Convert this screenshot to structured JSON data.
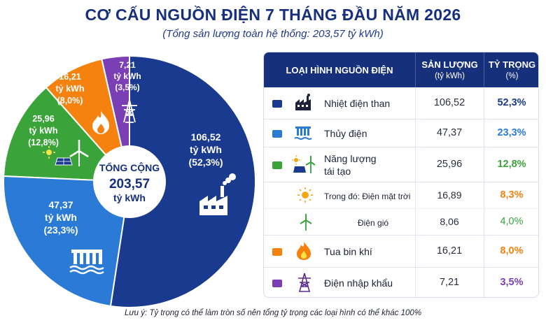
{
  "title": "CƠ CẤU NGUỒN ĐIỆN 7 THÁNG ĐẦU NĂM 2026",
  "subtitle": "(Tổng sản lượng toàn hệ thống: 203,57 tỷ kWh)",
  "center": {
    "line1": "TỔNG CỘNG",
    "line2": "203,57",
    "line3": "tỷ kWh"
  },
  "colors": {
    "coal": "#1a3a8f",
    "hydro": "#2a7ad6",
    "renewable": "#3aa33a",
    "gas": "#f5820f",
    "import": "#7b3fb5",
    "header": "#17307c"
  },
  "chart_data": {
    "type": "pie",
    "unit": "tỷ kWh",
    "slices": [
      {
        "key": "coal",
        "name": "Nhiệt điện than",
        "value": 106.52,
        "value_label": "106,52",
        "unit_label": "tỷ kWh",
        "pct_label": "(52,3%)",
        "icon": "factory-icon",
        "color": "#1a3a8f"
      },
      {
        "key": "hydro",
        "name": "Thủy điện",
        "value": 47.37,
        "value_label": "47,37",
        "unit_label": "tỷ kWh",
        "pct_label": "(23,3%)",
        "icon": "hydro-dam-icon",
        "color": "#2a7ad6"
      },
      {
        "key": "renewable",
        "name": "Năng lượng tái tạo",
        "value": 25.96,
        "value_label": "25,96",
        "unit_label": "tỷ kWh",
        "pct_label": "(12,8%)",
        "icon": "solar-wind-icon",
        "color": "#3aa33a"
      },
      {
        "key": "gas",
        "name": "Tua bin khí",
        "value": 16.21,
        "value_label": "16,21",
        "unit_label": "tỷ kWh",
        "pct_label": "(8,0%)",
        "icon": "flame-icon",
        "color": "#f5820f"
      },
      {
        "key": "import",
        "name": "Điện nhập khẩu",
        "value": 7.21,
        "value_label": "7,21",
        "unit_label": "tỷ kWh",
        "pct_label": "(3,5%)",
        "icon": "power-tower-icon",
        "color": "#7b3fb5"
      }
    ]
  },
  "table": {
    "headers": {
      "type": "LOẠI HÌNH NGUỒN ĐIỆN",
      "value": "SẢN LƯỢNG",
      "value_unit": "(tỷ kWh)",
      "share": "TỶ TRỌNG",
      "share_unit": "(%)"
    },
    "rows": [
      {
        "label": "Nhiệt điện than",
        "value": "106,52",
        "share": "52,3%",
        "color": "#1a3a8f",
        "icon": "factory-icon"
      },
      {
        "label": "Thủy điện",
        "value": "47,37",
        "share": "23,3%",
        "color": "#2a7ad6",
        "icon": "hydro-dam-icon"
      },
      {
        "label_line1": "Năng lượng",
        "label_line2": "tái tạo",
        "value": "25,96",
        "share": "12,8%",
        "color": "#3aa33a",
        "icon": "solar-wind-icon"
      },
      {
        "label": "Trong đó: Điện mặt trời",
        "value": "16,89",
        "share": "8,3%",
        "color": "#f5820f",
        "icon": "sun-icon"
      },
      {
        "label": "Điện gió",
        "value": "8,06",
        "share": "4,0%",
        "color": "#3aa33a",
        "icon": "wind-turbine-icon"
      },
      {
        "label": "Tua bin khí",
        "value": "16,21",
        "share": "8,0%",
        "color": "#f5820f",
        "icon": "flame-icon"
      },
      {
        "label": "Điện nhập khẩu",
        "value": "7,21",
        "share": "3,5%",
        "color": "#7b3fb5",
        "icon": "power-tower-icon"
      }
    ]
  },
  "note": "Lưu ý: Tỷ trọng có thể làm tròn số nên tổng tỷ trọng các loại hình có thể khác 100%"
}
